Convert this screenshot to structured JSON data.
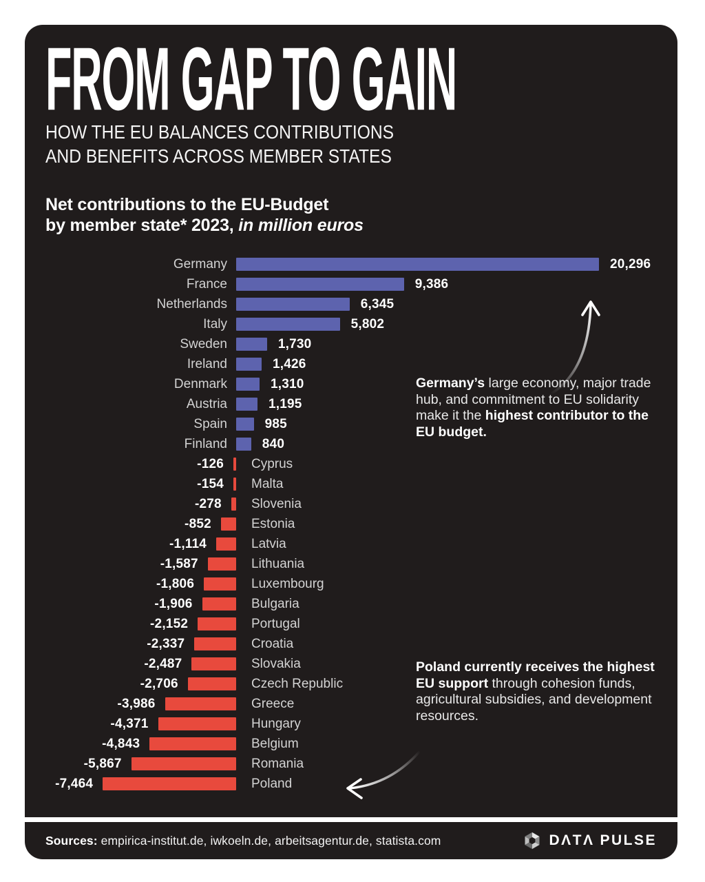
{
  "colors": {
    "page_bg": "#ffffff",
    "card_bg": "#201c1c",
    "positive_bar": "#5d63ae",
    "negative_bar": "#e84a3d",
    "label_text": "#d3d3d3",
    "value_text": "#ffffff"
  },
  "header": {
    "title": "FROM GAP TO GAIN",
    "subtitle_line1": "HOW THE EU BALANCES CONTRIBUTIONS",
    "subtitle_line2": "AND BENEFITS ACROSS MEMBER STATES"
  },
  "chart_heading": {
    "line1": "Net contributions to the EU-Budget",
    "line2_prefix": "by member state* 2023, ",
    "line2_italic": "in million euros"
  },
  "chart_data": {
    "type": "bar",
    "orientation": "horizontal",
    "title": "Net contributions to the EU-Budget by member state* 2023",
    "unit": "million euros",
    "xlim": [
      -7464,
      20296
    ],
    "grid": false,
    "positive_color": "#5d63ae",
    "negative_color": "#e84a3d",
    "categories": [
      "Germany",
      "France",
      "Netherlands",
      "Italy",
      "Sweden",
      "Ireland",
      "Denmark",
      "Austria",
      "Spain",
      "Finland",
      "Cyprus",
      "Malta",
      "Slovenia",
      "Estonia",
      "Latvia",
      "Lithuania",
      "Luxembourg",
      "Bulgaria",
      "Portugal",
      "Croatia",
      "Slovakia",
      "Czech Republic",
      "Greece",
      "Hungary",
      "Belgium",
      "Romania",
      "Poland"
    ],
    "values": [
      20296,
      9386,
      6345,
      5802,
      1730,
      1426,
      1310,
      1195,
      985,
      840,
      -126,
      -154,
      -278,
      -852,
      -1114,
      -1587,
      -1806,
      -1906,
      -2152,
      -2337,
      -2487,
      -2706,
      -3986,
      -4371,
      -4843,
      -5867,
      -7464
    ],
    "value_labels": [
      "20,296",
      "9,386",
      "6,345",
      "5,802",
      "1,730",
      "1,426",
      "1,310",
      "1,195",
      "985",
      "840",
      "-126",
      "-154",
      "-278",
      "-852",
      "-1,114",
      "-1,587",
      "-1,806",
      "-1,906",
      "-2,152",
      "-2,337",
      "-2,487",
      "-2,706",
      "-3,986",
      "-4,371",
      "-4,843",
      "-5,867",
      "-7,464"
    ]
  },
  "annotations": {
    "germany": {
      "p1": "Germany’s",
      "p2": " large economy, major trade hub, and commitment to EU solidarity make it the ",
      "p3": "highest contributor to the EU budget."
    },
    "poland": {
      "p1": "Poland currently receives the highest EU support",
      "p2": " through cohesion funds, agricultural subsidies, and development resources."
    }
  },
  "footer": {
    "sources_label": "Sources:",
    "sources_text": " empirica-institut.de, iwkoeln.de, arbeitsagentur.de, statista.com",
    "brand_part1": "DΛTΛ",
    "brand_part2": "PULSE"
  }
}
